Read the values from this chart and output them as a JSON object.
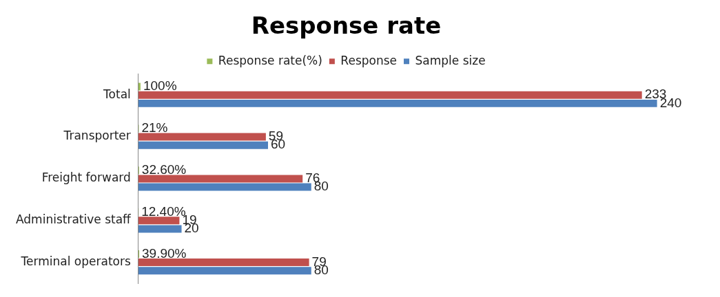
{
  "chart_data": {
    "type": "bar",
    "orientation": "horizontal",
    "title": "Response rate",
    "categories": [
      "Total",
      "Transporter",
      "Freight forward",
      "Administrative staff",
      "Terminal operators"
    ],
    "series": [
      {
        "name": "Response rate(%)",
        "color": "#9bbb59",
        "values": [
          1,
          0.21,
          0.326,
          0.124,
          0.399
        ],
        "value_labels": [
          "100%",
          "21%",
          "32.60%",
          "12.40%",
          "39.90%"
        ]
      },
      {
        "name": "Response",
        "color": "#c0504d",
        "values": [
          233,
          59,
          76,
          19,
          79
        ],
        "value_labels": [
          "233",
          "59",
          "76",
          "19",
          "79"
        ]
      },
      {
        "name": "Sample size",
        "color": "#4f81bd",
        "values": [
          240,
          60,
          80,
          20,
          80
        ],
        "value_labels": [
          "240",
          "60",
          "80",
          "20",
          "80"
        ]
      }
    ],
    "legend": "top",
    "tick_labels": "y"
  }
}
